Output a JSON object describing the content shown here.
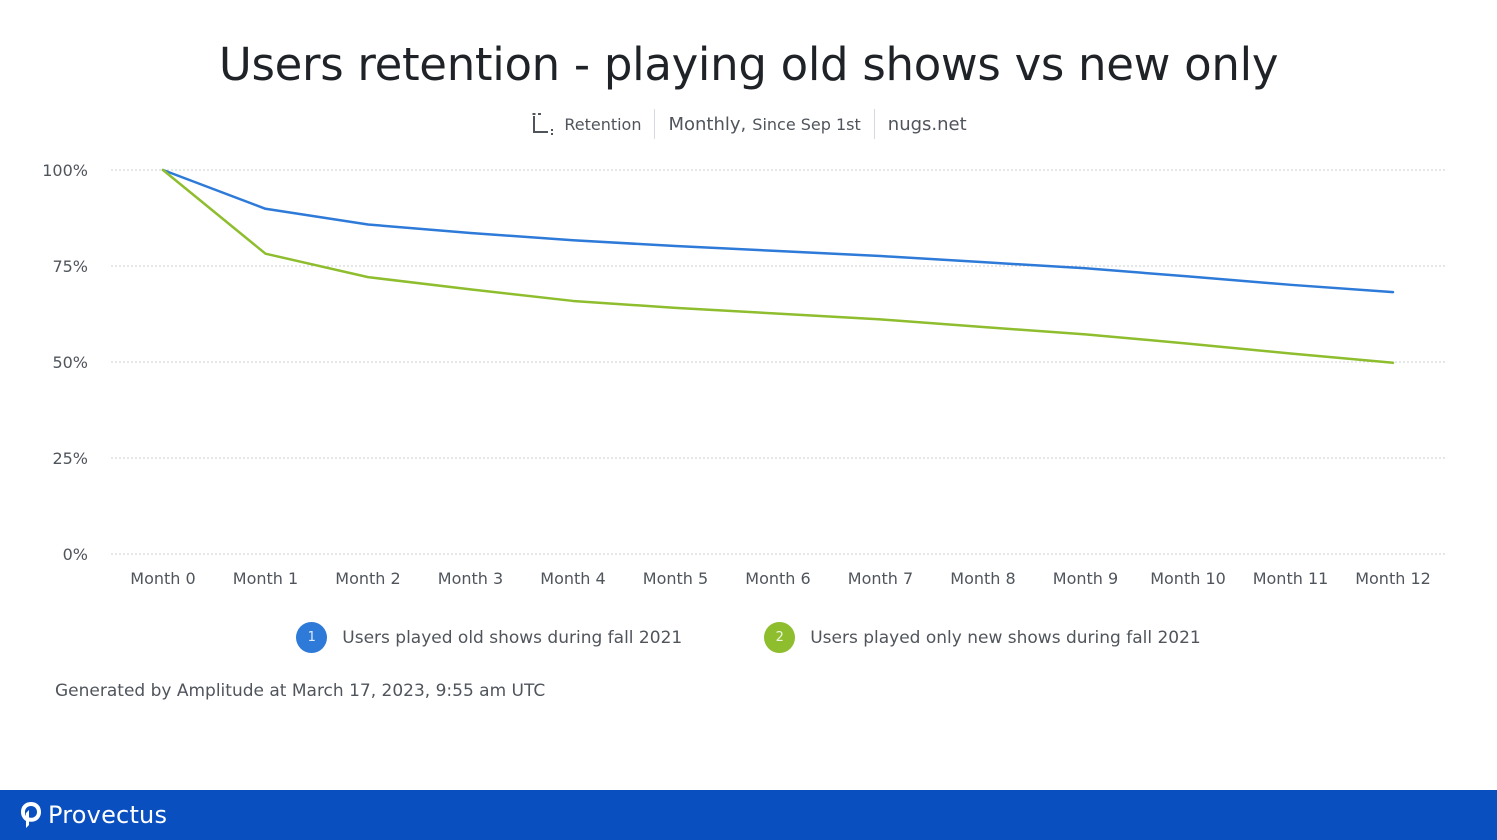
{
  "header": {
    "title": "Users retention - playing old shows vs new only",
    "metric_label": "Retention",
    "interval_label": "Monthly,",
    "since_label": "Since Sep 1st",
    "project_label": "nugs.net"
  },
  "chart_data": {
    "type": "line",
    "x": [
      "Month 0",
      "Month 1",
      "Month 2",
      "Month 3",
      "Month 4",
      "Month 5",
      "Month 6",
      "Month 7",
      "Month 8",
      "Month 9",
      "Month 10",
      "Month 11",
      "Month 12"
    ],
    "y_ticks": [
      "0%",
      "25%",
      "50%",
      "75%",
      "100%"
    ],
    "ylim": [
      0,
      100
    ],
    "grid": true,
    "legend_position": "bottom",
    "series": [
      {
        "name": "Users played old shows during fall 2021",
        "number": "1",
        "color": "#2e7ad8",
        "values": [
          100,
          89.9,
          85.8,
          83.6,
          81.7,
          80.2,
          78.9,
          77.6,
          76.0,
          74.4,
          72.3,
          70.1,
          68.2
        ]
      },
      {
        "name": "Users played only new shows during fall 2021",
        "number": "2",
        "color": "#8ebd2e",
        "values": [
          100,
          78.2,
          72.1,
          68.9,
          65.9,
          64.1,
          62.6,
          61.1,
          59.1,
          57.2,
          54.8,
          52.2,
          49.8
        ]
      }
    ]
  },
  "footer": {
    "generated_note": "Generated by Amplitude at March 17, 2023, 9:55 am UTC"
  },
  "brand": {
    "name": "Provectus",
    "logo_icon": "provectus-logo-icon",
    "bar_color": "#0a4fbf"
  }
}
